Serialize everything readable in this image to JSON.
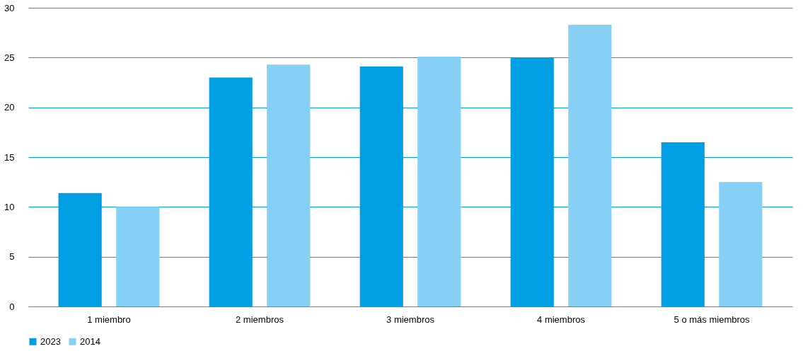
{
  "chart_data": {
    "type": "bar",
    "categories": [
      "1 miembro",
      "2 miembros",
      "3 miembros",
      "4 miembros",
      "5 o más miembros"
    ],
    "series": [
      {
        "name": "2023",
        "color": "#009fe3",
        "values": [
          11.4,
          23.0,
          24.1,
          25.0,
          16.5
        ]
      },
      {
        "name": "2014",
        "color": "#86cff5",
        "values": [
          10.0,
          24.3,
          25.1,
          28.3,
          12.5
        ]
      }
    ],
    "ylim": [
      0,
      30
    ],
    "yticks": [
      0,
      5,
      10,
      15,
      20,
      25,
      30
    ],
    "grid": "y",
    "legend": "bottom"
  }
}
